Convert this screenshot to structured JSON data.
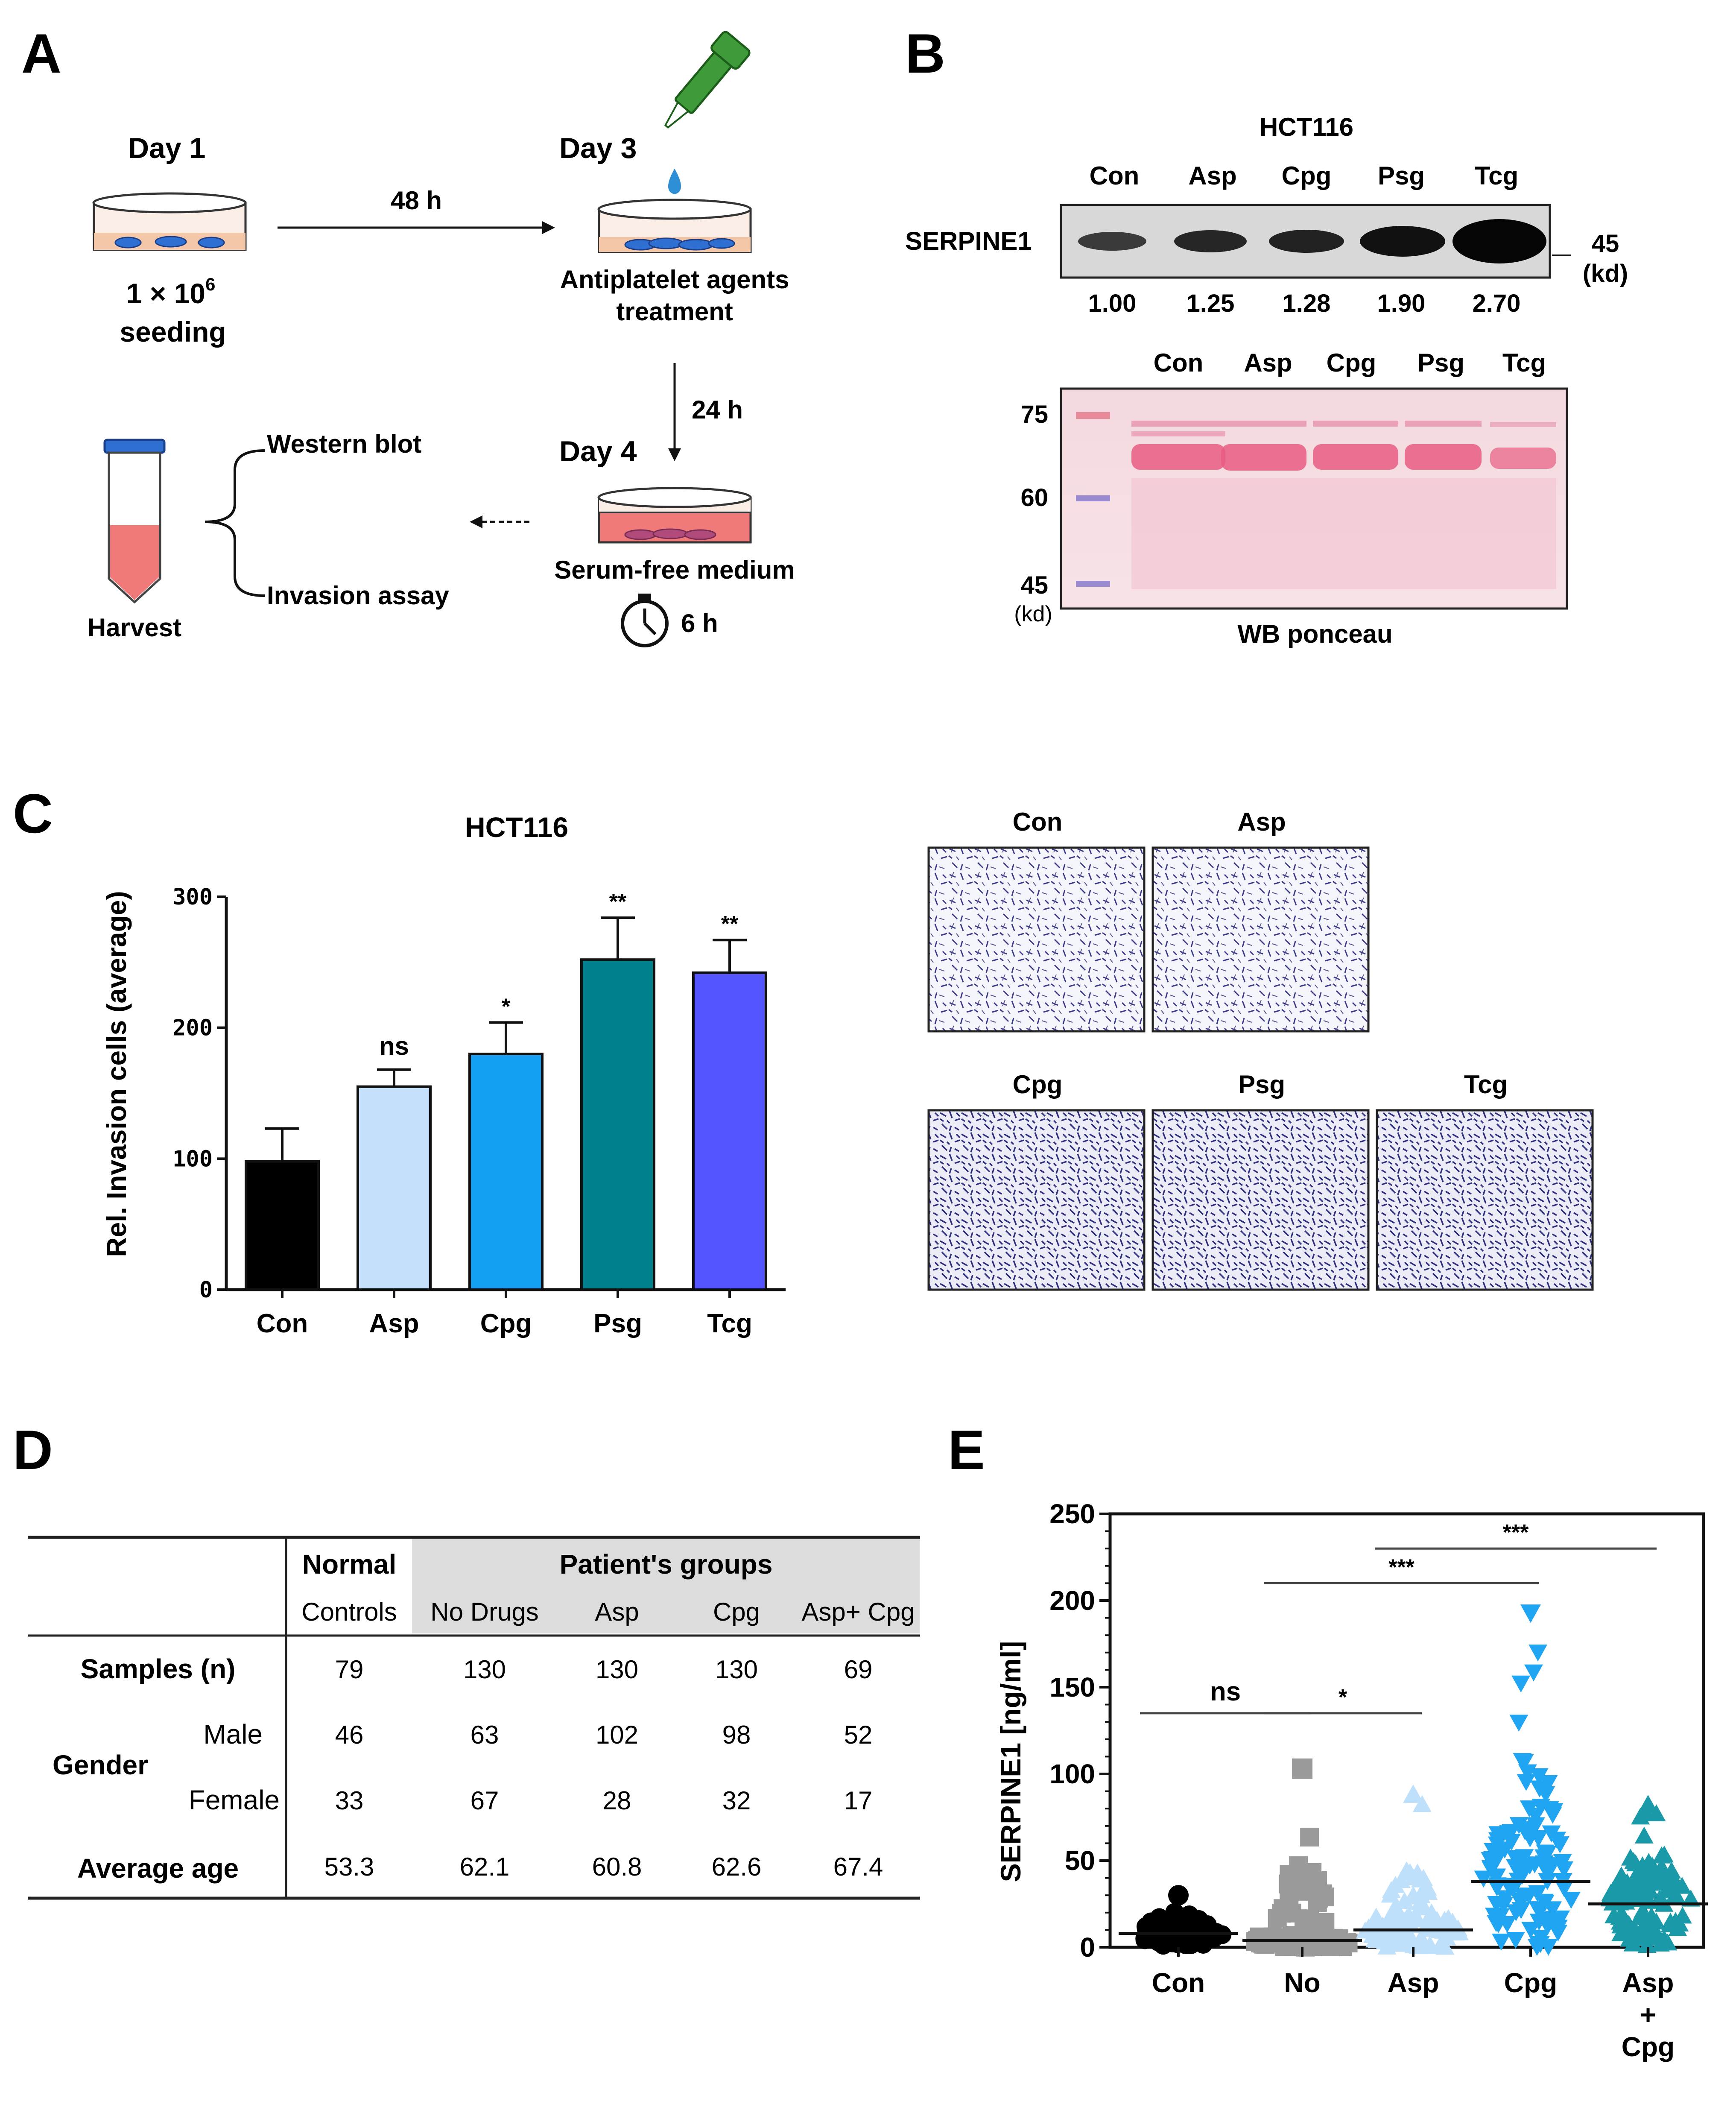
{
  "panel_labels": {
    "a": "A",
    "b": "B",
    "c": "C",
    "d": "D",
    "e": "E"
  },
  "panel_a": {
    "day1": "Day 1",
    "day3": "Day 3",
    "day4": "Day 4",
    "t48": "48 h",
    "t24": "24 h",
    "t6": "6 h",
    "seeding_line1": "1 × 10",
    "seeding_sup": "6",
    "seeding_line2": "seeding",
    "treat_line1": "Antiplatelet agents",
    "treat_line2": "treatment",
    "serum": "Serum-free medium",
    "western": "Western blot",
    "invasion": "Invasion assay",
    "harvest": "Harvest",
    "colors": {
      "dish_fill": "#f4c7a8",
      "cells": "#2e6fd1",
      "medium": "#f07a7a",
      "dropper": "#3f9a3a",
      "tube_cap": "#2e6fd1"
    }
  },
  "panel_b": {
    "title": "HCT116",
    "lanes": [
      "Con",
      "Asp",
      "Cpg",
      "Psg",
      "Tcg"
    ],
    "protein": "SERPINE1",
    "marker_value": "45",
    "marker_unit": "(kd)",
    "quant": [
      "1.00",
      "1.25",
      "1.28",
      "1.90",
      "2.70"
    ],
    "ladder": [
      "75",
      "60",
      "45"
    ],
    "ladder_unit": "(kd)",
    "ponceau_caption": "WB ponceau"
  },
  "panel_c": {
    "images_row1": [
      "Con",
      "Asp"
    ],
    "images_row2": [
      "Cpg",
      "Psg",
      "Tcg"
    ]
  },
  "panel_d": {
    "head_normal": "Normal",
    "head_patients": "Patient's groups",
    "subhead": [
      "Controls",
      "No Drugs",
      "Asp",
      "Cpg",
      "Asp+ Cpg"
    ],
    "rows": [
      {
        "label": "Samples (n)",
        "values": [
          "79",
          "130",
          "130",
          "130",
          "69"
        ]
      },
      {
        "label": "Male",
        "values": [
          "46",
          "63",
          "102",
          "98",
          "52"
        ]
      },
      {
        "label": "Female",
        "values": [
          "33",
          "67",
          "28",
          "32",
          "17"
        ]
      },
      {
        "label": "Average age",
        "values": [
          "53.3",
          "62.1",
          "60.8",
          "62.6",
          "67.4"
        ]
      }
    ],
    "gender": "Gender"
  },
  "chart_data": [
    {
      "type": "bar",
      "title": "HCT116",
      "ylabel": "Rel. Invasion cells (average)",
      "xlabel": "",
      "categories": [
        "Con",
        "Asp",
        "Cpg",
        "Psg",
        "Tcg"
      ],
      "values": [
        98,
        155,
        180,
        252,
        242
      ],
      "errors": [
        25,
        13,
        24,
        32,
        25
      ],
      "significance": [
        "",
        "ns",
        "*",
        "**",
        "**"
      ],
      "colors": [
        "#000000",
        "#c5e0fb",
        "#14a0f2",
        "#007f8c",
        "#5555ff"
      ],
      "ylim": [
        0,
        300
      ],
      "yticks": [
        "0",
        "100",
        "200",
        "300"
      ]
    },
    {
      "type": "scatter",
      "ylabel": "SERPINE1 [ng/ml]",
      "categories": [
        "Con",
        "No",
        "Asp",
        "Cpg",
        "Asp + Cpg"
      ],
      "xlabels": [
        [
          "Con"
        ],
        [
          "No"
        ],
        [
          "Asp"
        ],
        [
          "Cpg"
        ],
        [
          "Asp",
          "+",
          "Cpg"
        ]
      ],
      "medians": [
        8,
        4,
        10,
        38,
        25
      ],
      "max": [
        30,
        103,
        88,
        193,
        82
      ],
      "colors": [
        "#000000",
        "#9a9a9a",
        "#bfe0fb",
        "#1fa5f2",
        "#1a9aa8"
      ],
      "markers": [
        "circle",
        "square",
        "triangle-up",
        "triangle-down",
        "triangle-up"
      ],
      "ylim": [
        0,
        250
      ],
      "yticks": [
        "0",
        "50",
        "100",
        "150",
        "200",
        "250"
      ],
      "comparisons": [
        {
          "from": 0,
          "to": 1,
          "label": "ns",
          "y": 135
        },
        {
          "from": 1,
          "to": 2,
          "label": "*",
          "y": 135
        },
        {
          "from": 1,
          "to": 3,
          "label": "***",
          "y": 210
        },
        {
          "from": 2,
          "to": 4,
          "label": "***",
          "y": 230
        }
      ]
    }
  ]
}
